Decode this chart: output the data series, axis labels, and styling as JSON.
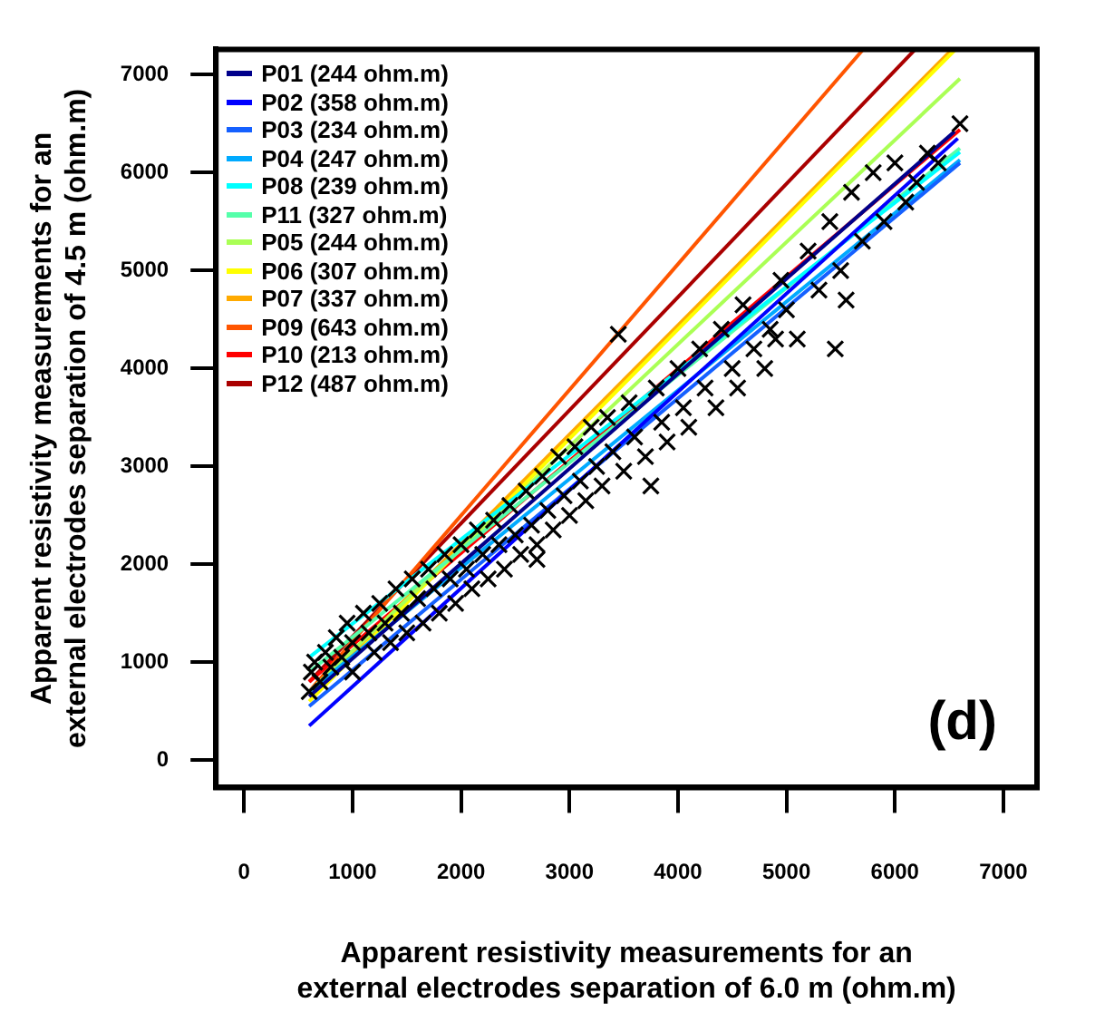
{
  "chart_data": {
    "type": "scatter",
    "xlabel": "Apparent resistivity measurements for an\nexternal electrodes separation of 6.0 m (ohm.m)",
    "ylabel": "Apparent resistivity measurements for an\nexternal electrodes separation of 4.5 m (ohm.m)",
    "annotations": [
      "(d)"
    ],
    "xlim": [
      -260,
      7310
    ],
    "ylim": [
      -280,
      7260
    ],
    "xticks": [
      0,
      1000,
      2000,
      3000,
      4000,
      5000,
      6000,
      7000
    ],
    "yticks": [
      0,
      1000,
      2000,
      3000,
      4000,
      5000,
      6000,
      7000
    ],
    "grid": false,
    "legend": "top left",
    "series": [
      {
        "marker": "cross",
        "color": "#000000",
        "x": [
          600,
          620,
          650,
          700,
          750,
          800,
          850,
          900,
          950,
          1000,
          1000,
          1100,
          1150,
          1200,
          1250,
          1300,
          1350,
          1400,
          1450,
          1500,
          1550,
          1600,
          1650,
          1700,
          1750,
          1800,
          1850,
          1900,
          1950,
          2000,
          2050,
          2100,
          2150,
          2200,
          2250,
          2300,
          2350,
          2400,
          2450,
          2500,
          2550,
          2600,
          2650,
          2700,
          2700,
          2750,
          2800,
          2850,
          2900,
          2950,
          3000,
          3050,
          3100,
          3150,
          3200,
          3250,
          3300,
          3350,
          3400,
          3450,
          3500,
          3550,
          3600,
          3700,
          3750,
          3800,
          3850,
          3900,
          4000,
          4050,
          4100,
          4200,
          4250,
          4350,
          4400,
          4500,
          4550,
          4600,
          4700,
          4800,
          4850,
          4900,
          4950,
          5000,
          5100,
          5200,
          5300,
          5400,
          5450,
          5500,
          5550,
          5600,
          5700,
          5800,
          5900,
          6000,
          6100,
          6200,
          6300,
          6400,
          6600
        ],
        "values": [
          700,
          900,
          1000,
          800,
          1100,
          950,
          1250,
          1050,
          1400,
          1200,
          900,
          1500,
          1300,
          1100,
          1600,
          1400,
          1200,
          1750,
          1500,
          1300,
          1850,
          1650,
          1400,
          1950,
          1750,
          1500,
          2100,
          1850,
          1600,
          2200,
          1950,
          1750,
          2350,
          2100,
          1850,
          2450,
          2200,
          1950,
          2600,
          2300,
          2100,
          2750,
          2400,
          2050,
          2200,
          2900,
          2550,
          2350,
          3100,
          2700,
          2500,
          3200,
          2850,
          2650,
          3400,
          3000,
          2800,
          3500,
          3150,
          4350,
          2950,
          3650,
          3300,
          3100,
          2800,
          3800,
          3450,
          3250,
          4000,
          3600,
          3400,
          4200,
          3800,
          3600,
          4400,
          4000,
          3800,
          4650,
          4200,
          4000,
          4400,
          4300,
          4900,
          4600,
          4300,
          5200,
          4800,
          5500,
          4200,
          5000,
          4700,
          5800,
          5300,
          6000,
          5500,
          6100,
          5700,
          5900,
          6200,
          6100,
          6500
        ]
      },
      {
        "type": "line",
        "name": "P01 (244 ohm.m)",
        "color": "#00008b",
        "x": [
          600,
          6550
        ],
        "values": [
          650,
          6420
        ]
      },
      {
        "type": "line",
        "name": "P02 (358 ohm.m)",
        "color": "#0000ff",
        "x": [
          600,
          6580
        ],
        "values": [
          350,
          6350
        ]
      },
      {
        "type": "line",
        "name": "P03 (234 ohm.m)",
        "color": "#1560ff",
        "x": [
          600,
          6600
        ],
        "values": [
          550,
          6100
        ]
      },
      {
        "type": "line",
        "name": "P04 (247 ohm.m)",
        "color": "#00aaff",
        "x": [
          600,
          6600
        ],
        "values": [
          700,
          6130
        ]
      },
      {
        "type": "line",
        "name": "P08 (239 ohm.m)",
        "color": "#00ffff",
        "x": [
          600,
          6600
        ],
        "values": [
          1050,
          6210
        ]
      },
      {
        "type": "line",
        "name": "P11 (327 ohm.m)",
        "color": "#55ffaa",
        "x": [
          600,
          6600
        ],
        "values": [
          900,
          6250
        ]
      },
      {
        "type": "line",
        "name": "P05 (244 ohm.m)",
        "color": "#aaff55",
        "x": [
          600,
          6600
        ],
        "values": [
          700,
          6960
        ]
      },
      {
        "type": "line",
        "name": "P06 (307 ohm.m)",
        "color": "#ffff00",
        "x": [
          600,
          6550
        ],
        "values": [
          600,
          7250
        ]
      },
      {
        "type": "line",
        "name": "P07 (337 ohm.m)",
        "color": "#ffaa00",
        "x": [
          600,
          6520
        ],
        "values": [
          650,
          7250
        ]
      },
      {
        "type": "line",
        "name": "P09 (643 ohm.m)",
        "color": "#ff5500",
        "x": [
          600,
          5700
        ],
        "values": [
          700,
          7250
        ]
      },
      {
        "type": "line",
        "name": "P10 (213 ohm.m)",
        "color": "#ff0000",
        "x": [
          600,
          6600
        ],
        "values": [
          800,
          6440
        ]
      },
      {
        "type": "line",
        "name": "P12 (487 ohm.m)",
        "color": "#aa0000",
        "x": [
          600,
          6180
        ],
        "values": [
          800,
          7250
        ]
      }
    ]
  }
}
